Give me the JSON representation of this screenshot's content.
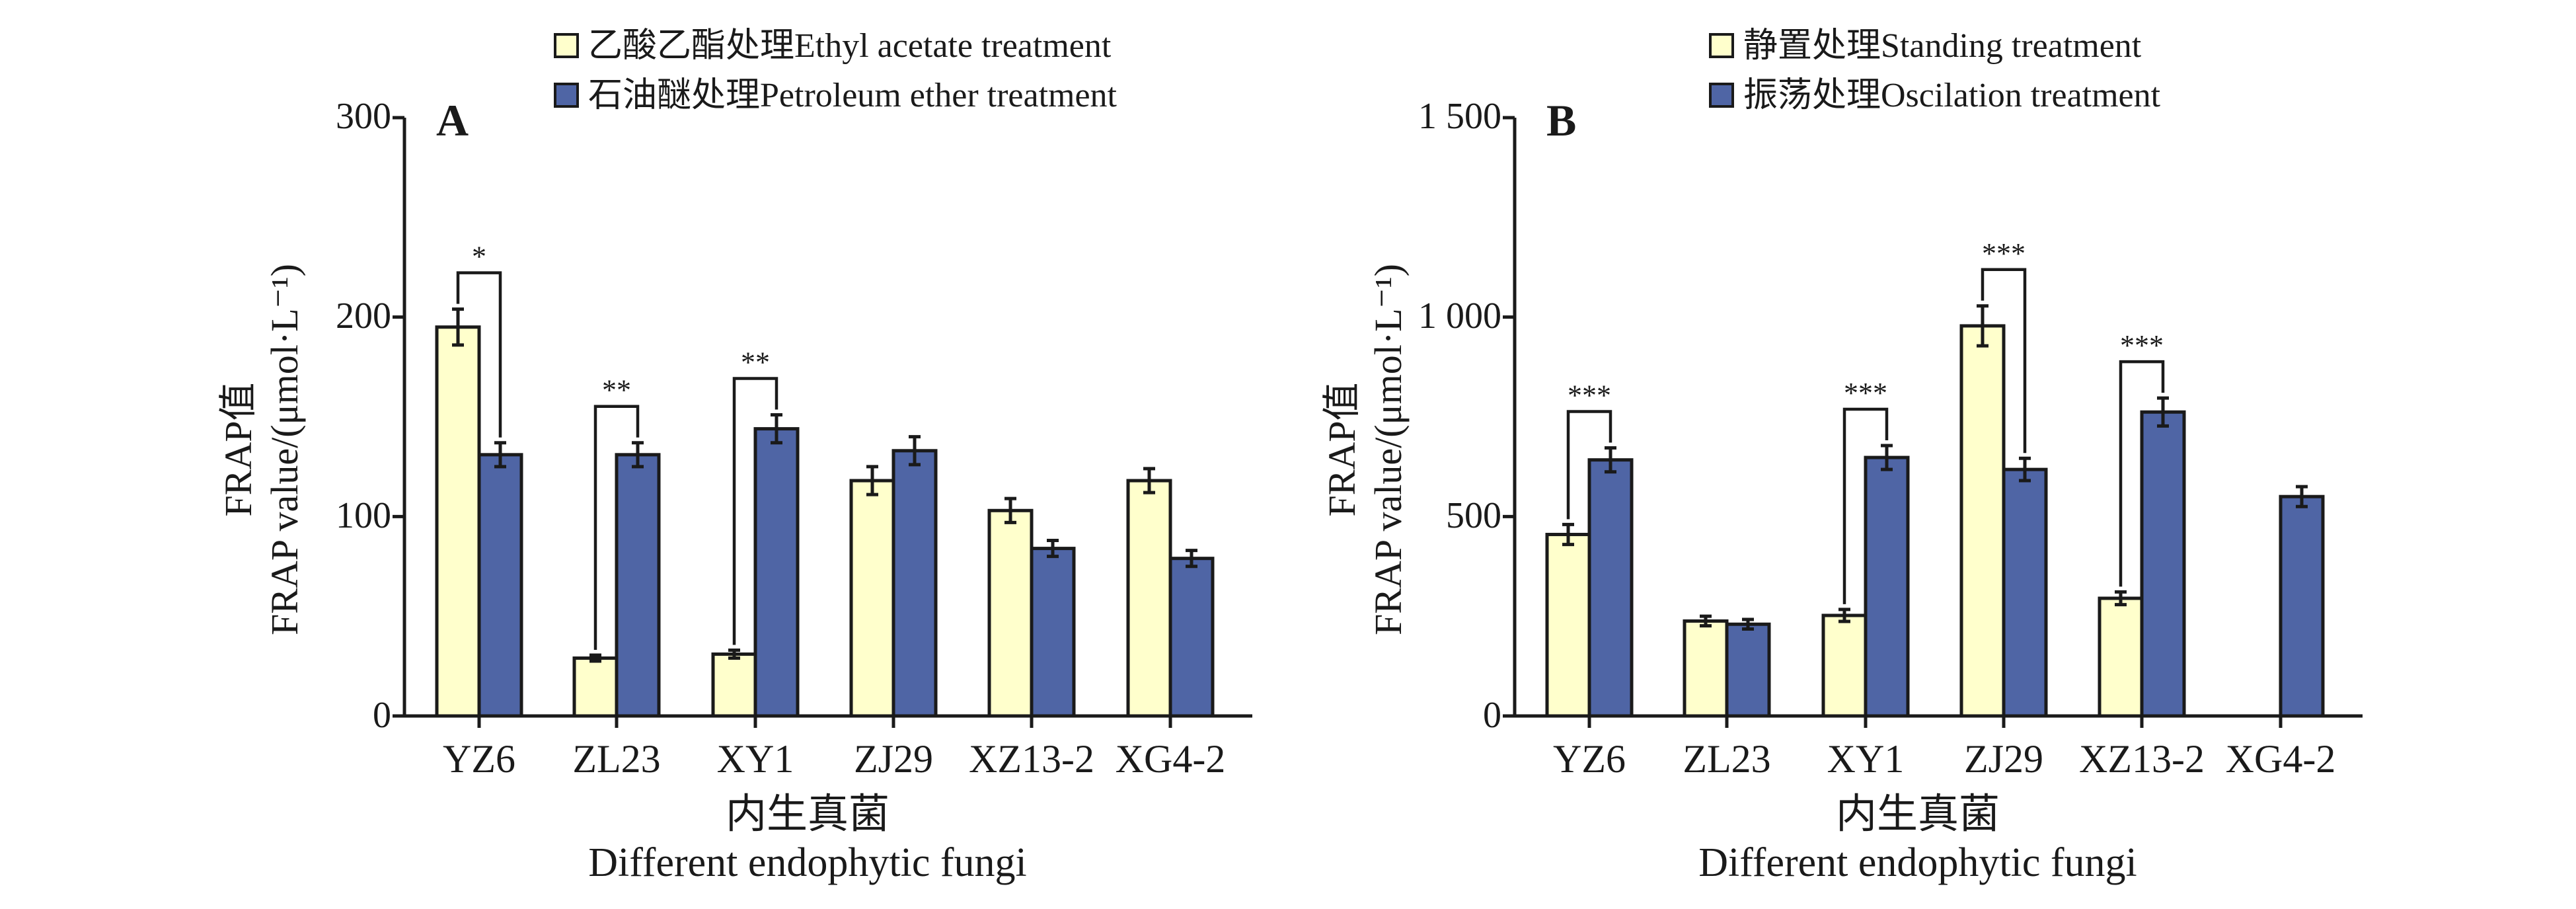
{
  "colors": {
    "series0": "#ffffcc",
    "series1": "#4f65a5",
    "ink": "#1a1a1a"
  },
  "panels": [
    {
      "label": "A",
      "ylabel_cn": "FRAP值",
      "ylabel_en": "FRAP value/(μmol·L⁻¹)",
      "xlabel_cn": "内生真菌",
      "xlabel_en": "Different endophytic fungi",
      "legend": [
        "乙酸乙酯处理Ethyl acetate treatment",
        "石油醚处理Petroleum ether treatment"
      ],
      "yticks": [
        "0",
        "100",
        "200",
        "300"
      ]
    },
    {
      "label": "B",
      "ylabel_cn": "FRAP值",
      "ylabel_en": "FRAP value/(μmol·L⁻¹)",
      "xlabel_cn": "内生真菌",
      "xlabel_en": "Different endophytic fungi",
      "legend": [
        "静置处理Standing treatment",
        "振荡处理Oscilation treatment"
      ],
      "yticks": [
        "0",
        "500",
        "1 000",
        "1 500"
      ]
    }
  ],
  "chart_data": [
    {
      "type": "bar",
      "panel": "A",
      "categories": [
        "YZ6",
        "ZL23",
        "XY1",
        "ZJ29",
        "XZ13-2",
        "XG4-2"
      ],
      "series": [
        {
          "name": "乙酸乙酯处理Ethyl acetate treatment",
          "values": [
            195,
            29,
            31,
            118,
            103,
            118
          ],
          "errors": [
            9,
            1.5,
            2,
            7,
            6,
            6
          ]
        },
        {
          "name": "石油醚处理Petroleum ether treatment",
          "values": [
            131,
            131,
            144,
            133,
            84,
            79
          ],
          "errors": [
            6,
            6,
            7,
            7,
            4,
            4
          ]
        }
      ],
      "significance": [
        {
          "category": "YZ6",
          "label": "*"
        },
        {
          "category": "ZL23",
          "label": "**"
        },
        {
          "category": "XY1",
          "label": "**"
        }
      ],
      "xlabel": "内生真菌 Different endophytic fungi",
      "ylabel": "FRAP值 FRAP value/(μmol·L⁻¹)",
      "ylim": [
        0,
        300
      ]
    },
    {
      "type": "bar",
      "panel": "B",
      "categories": [
        "YZ6",
        "ZL23",
        "XY1",
        "ZJ29",
        "XZ13-2",
        "XG4-2"
      ],
      "series": [
        {
          "name": "静置处理Standing treatment",
          "values": [
            455,
            238,
            252,
            978,
            295,
            null
          ],
          "errors": [
            25,
            12,
            15,
            50,
            16,
            null
          ]
        },
        {
          "name": "振荡处理Oscilation treatment",
          "values": [
            642,
            230,
            648,
            618,
            762,
            550
          ],
          "errors": [
            30,
            12,
            30,
            28,
            35,
            25
          ]
        }
      ],
      "significance": [
        {
          "category": "YZ6",
          "label": "***"
        },
        {
          "category": "XY1",
          "label": "***"
        },
        {
          "category": "ZJ29",
          "label": "***"
        },
        {
          "category": "XZ13-2",
          "label": "***"
        }
      ],
      "xlabel": "内生真菌 Different endophytic fungi",
      "ylabel": "FRAP值 FRAP value/(μmol·L⁻¹)",
      "ylim": [
        0,
        1500
      ]
    }
  ]
}
